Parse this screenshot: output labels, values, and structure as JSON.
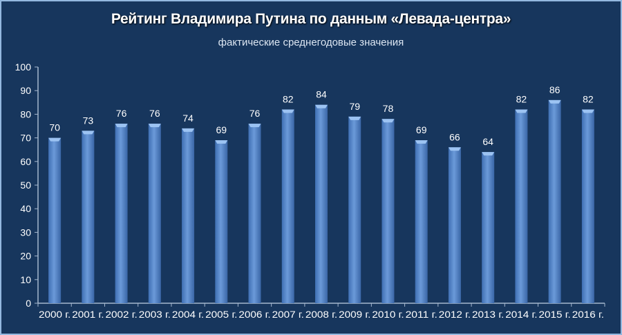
{
  "chart_data": {
    "type": "bar",
    "title": "Рейтинг Владимира Путина по данным «Левада-центра»",
    "subtitle": "фактические среднегодовые значения",
    "categories": [
      "2000 г.",
      "2001 г.",
      "2002 г.",
      "2003 г.",
      "2004 г.",
      "2005 г.",
      "2006 г.",
      "2007 г.",
      "2008 г.",
      "2009 г.",
      "2010 г.",
      "2011 г.",
      "2012 г.",
      "2013 г.",
      "2014 г.",
      "2015 г.",
      "2016 г."
    ],
    "values": [
      70,
      73,
      76,
      76,
      74,
      69,
      76,
      82,
      84,
      79,
      78,
      69,
      66,
      64,
      82,
      86,
      82
    ],
    "ylim": [
      0,
      100
    ],
    "yticks": [
      0,
      10,
      20,
      30,
      40,
      50,
      60,
      70,
      80,
      90,
      100
    ],
    "grid": false,
    "legend": "none",
    "data_labels": true,
    "colors": {
      "background": "#17365d",
      "bar": "#5b8bd0",
      "text": "#ffffff"
    }
  }
}
